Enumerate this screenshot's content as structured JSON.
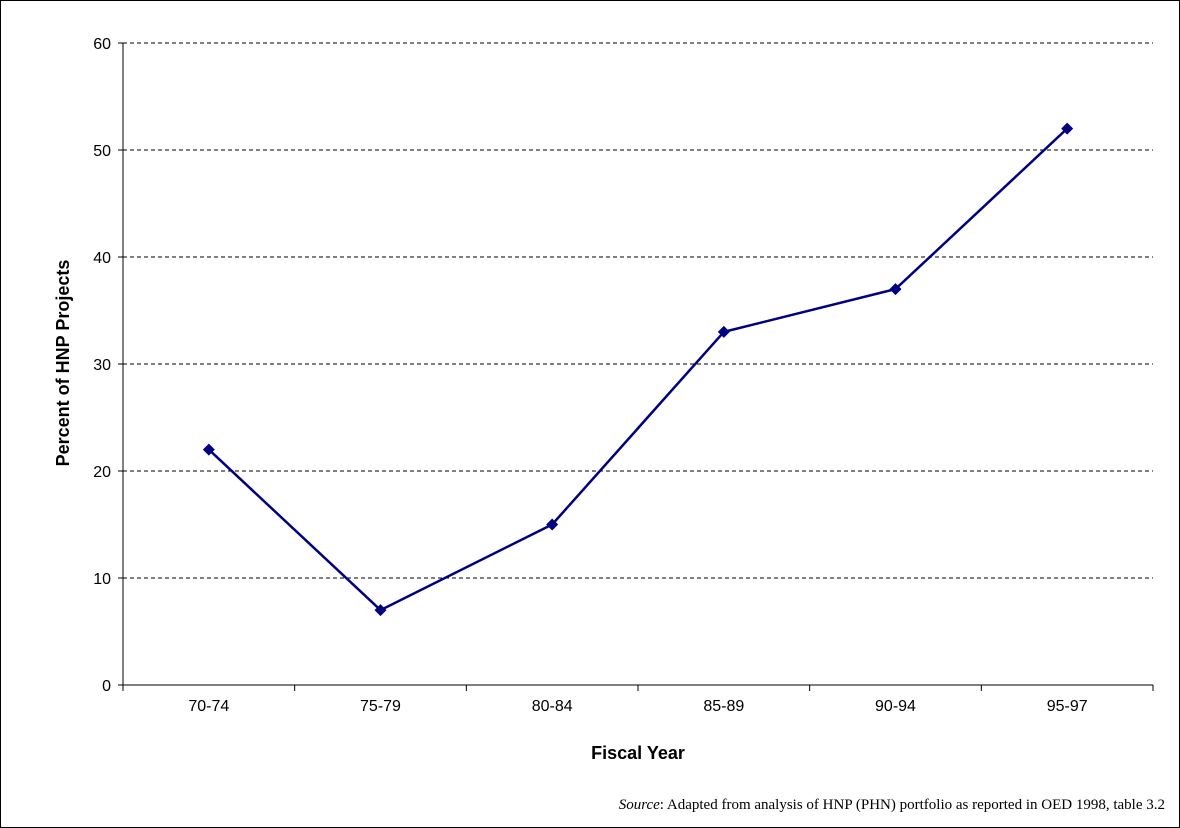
{
  "figure": {
    "title": "",
    "source_label": "Source",
    "source_text": ": Adapted from analysis of HNP (PHN) portfolio as reported in OED 1998, table 3.2"
  },
  "chart_data": {
    "type": "line",
    "title": "",
    "xlabel": "Fiscal Year",
    "ylabel": "Percent of HNP Projects",
    "categories": [
      "70-74",
      "75-79",
      "80-84",
      "85-89",
      "90-94",
      "95-97"
    ],
    "series": [
      {
        "values": [
          22,
          7,
          15,
          33,
          37,
          52
        ],
        "color": "#000080",
        "marker": "diamond"
      }
    ],
    "ylim": [
      0,
      60
    ],
    "yticks": [
      0,
      10,
      20,
      30,
      40,
      50,
      60
    ],
    "grid": "horizontal-dashed",
    "legend": "none"
  }
}
